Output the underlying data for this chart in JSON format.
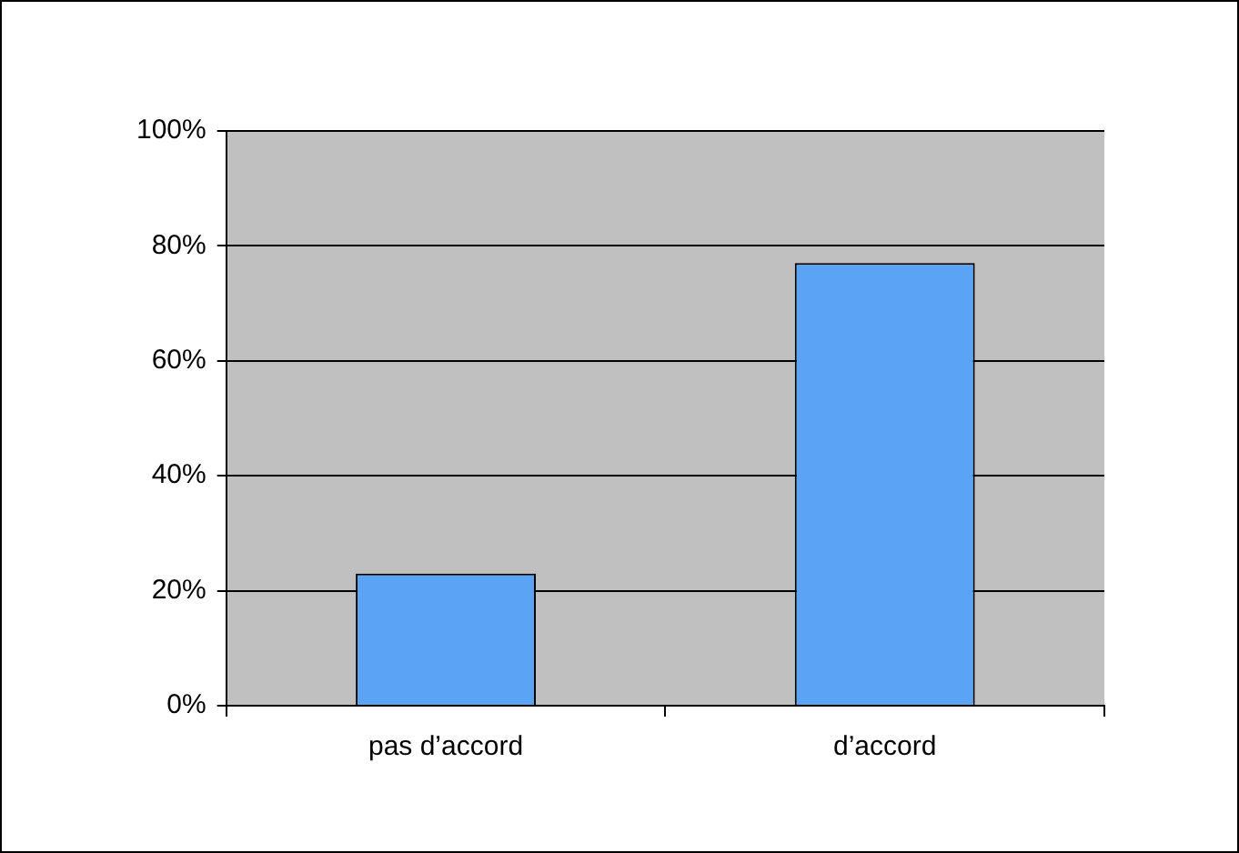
{
  "chart_data": {
    "type": "bar",
    "categories": [
      "pas d’accord",
      "d’accord"
    ],
    "values": [
      23,
      77
    ],
    "color": "#5ba3f5",
    "ylim": [
      0,
      100
    ],
    "yticks": [
      {
        "value": 0,
        "label": "0%"
      },
      {
        "value": 20,
        "label": "20%"
      },
      {
        "value": 40,
        "label": "40%"
      },
      {
        "value": 60,
        "label": "60%"
      },
      {
        "value": 80,
        "label": "80%"
      },
      {
        "value": 100,
        "label": "100%"
      }
    ],
    "grid": "y",
    "legend": false
  }
}
